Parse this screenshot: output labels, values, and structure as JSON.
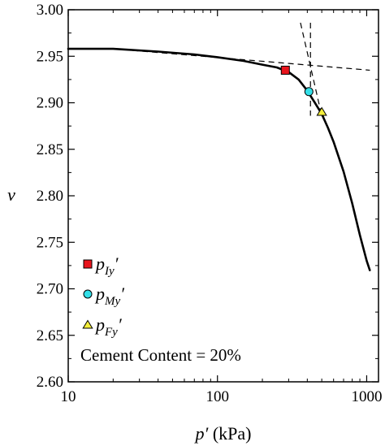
{
  "chart_data": {
    "type": "line",
    "xlabel": {
      "main": "p′",
      "unit": " (kPa)"
    },
    "ylabel": "ν",
    "x_scale": "log",
    "xlim": [
      10,
      1200
    ],
    "ylim": [
      2.6,
      3.0
    ],
    "x_ticks": [
      {
        "value": 10,
        "label": "10"
      },
      {
        "value": 100,
        "label": "100"
      },
      {
        "value": 1000,
        "label": "1000"
      }
    ],
    "y_ticks": [
      {
        "value": 2.6,
        "label": "2.60"
      },
      {
        "value": 2.65,
        "label": "2.65"
      },
      {
        "value": 2.7,
        "label": "2.70"
      },
      {
        "value": 2.75,
        "label": "2.75"
      },
      {
        "value": 2.8,
        "label": "2.80"
      },
      {
        "value": 2.85,
        "label": "2.85"
      },
      {
        "value": 2.9,
        "label": "2.90"
      },
      {
        "value": 2.95,
        "label": "2.95"
      },
      {
        "value": 3.0,
        "label": "3.00"
      }
    ],
    "grid": false,
    "curve": {
      "x": [
        10,
        20,
        40,
        70,
        100,
        150,
        200,
        250,
        300,
        350,
        400,
        450,
        500,
        550,
        600,
        700,
        800,
        900,
        1000,
        1050
      ],
      "y": [
        2.958,
        2.958,
        2.955,
        2.952,
        2.949,
        2.945,
        2.941,
        2.938,
        2.933,
        2.925,
        2.913,
        2.9,
        2.888,
        2.873,
        2.858,
        2.826,
        2.792,
        2.758,
        2.73,
        2.72
      ]
    },
    "guide_lines": [
      {
        "x": [
          20,
          1050
        ],
        "y": [
          2.958,
          2.935
        ]
      },
      {
        "x": [
          360,
          500
        ],
        "y": [
          2.986,
          2.886
        ]
      },
      {
        "x": [
          420,
          420
        ],
        "y": [
          2.986,
          2.886
        ]
      }
    ],
    "markers": [
      {
        "label": "p_Iy′",
        "main": "p",
        "sub": "Iy",
        "suffix": "′",
        "x": 285,
        "y": 2.935,
        "shape": "square",
        "color": "#e8141c"
      },
      {
        "label": "p_My′",
        "main": "p",
        "sub": "My",
        "suffix": "′",
        "x": 410,
        "y": 2.912,
        "shape": "circle",
        "color": "#33dfe8"
      },
      {
        "label": "p_Fy′",
        "main": "p",
        "sub": "Fy",
        "suffix": "′",
        "x": 500,
        "y": 2.89,
        "shape": "triangle",
        "color": "#f4ee3a"
      }
    ],
    "annotation": "Cement Content  = 20%",
    "legend_position": "bottom-left"
  }
}
